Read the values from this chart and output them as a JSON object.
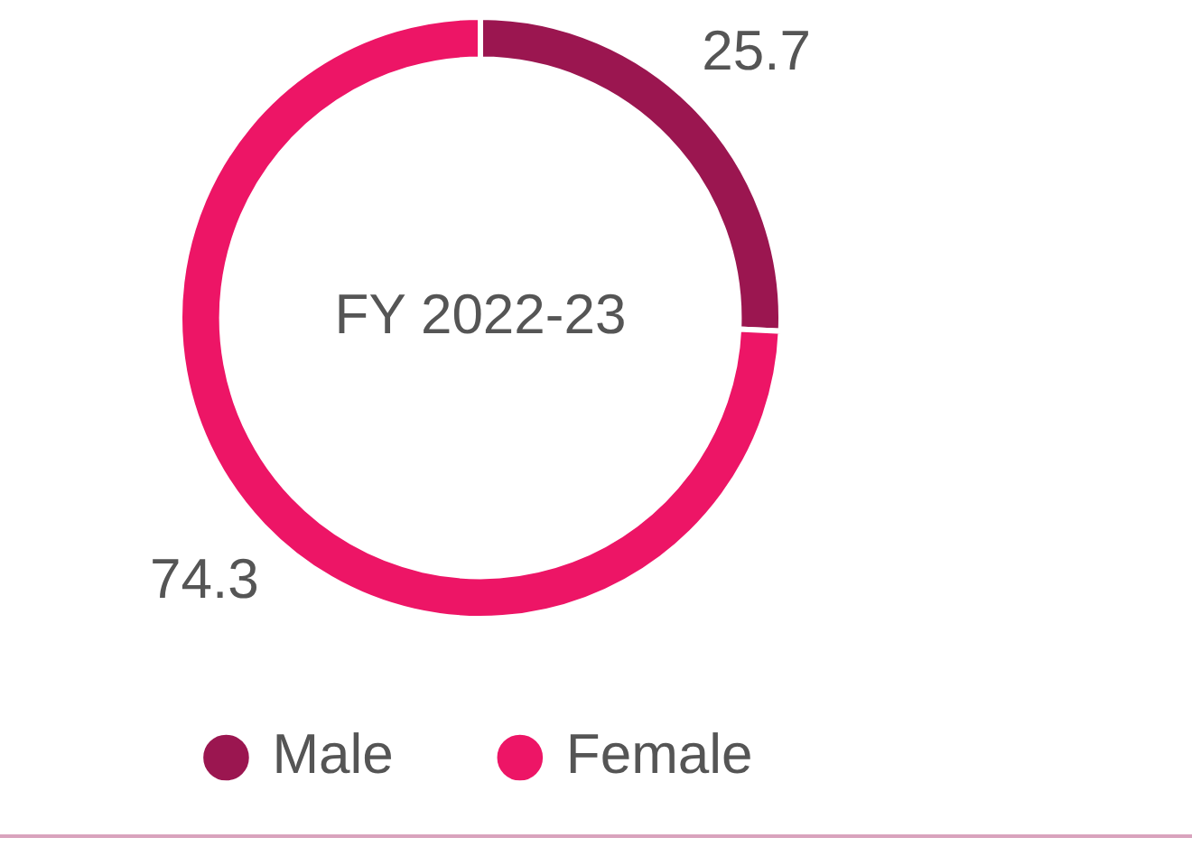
{
  "chart_data": {
    "type": "donut",
    "title": "FY 2022-23",
    "categories": [
      "Male",
      "Female"
    ],
    "values": [
      25.7,
      74.3
    ],
    "colors": [
      "#9b1650",
      "#ed1566"
    ],
    "data_labels": true,
    "legend": "bottom"
  }
}
